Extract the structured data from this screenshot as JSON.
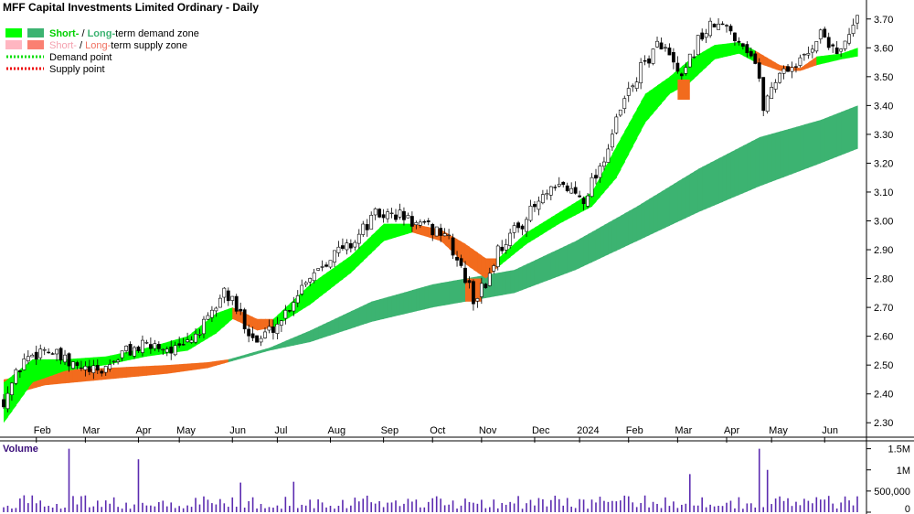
{
  "title": "MFF Capital Investments Limited Ordinary - Daily",
  "legend": [
    {
      "parts": [
        {
          "text": "Short-",
          "color": "#00e400"
        },
        {
          "text": " / ",
          "color": "#000000"
        },
        {
          "text": "Long-",
          "color": "#3cb371"
        },
        {
          "text": "term demand zone",
          "color": "#000000"
        }
      ],
      "swatch1": "#00ff00",
      "swatch2": "#3cb371"
    },
    {
      "parts": [
        {
          "text": "Short-",
          "color": "#ffb6c1"
        },
        {
          "text": " / ",
          "color": "#000000"
        },
        {
          "text": "Long-",
          "color": "#fa8072"
        },
        {
          "text": "term supply zone",
          "color": "#000000"
        }
      ],
      "swatch1": "#ffb6c1",
      "swatch2": "#fa8072"
    },
    {
      "text": "Demand point",
      "dot_color": "#00dd00"
    },
    {
      "text": "Supply point",
      "dot_color": "#ee0000"
    }
  ],
  "volume_label": "Volume",
  "colors": {
    "short_demand": "#00ff00",
    "long_demand": "#3cb371",
    "short_supply": "#ffb6c1",
    "long_supply": "#f26b1d",
    "candle": "#000000",
    "volume": "#5b2bb0"
  },
  "chart_data": {
    "type": "candlestick",
    "price_axis": {
      "min": 2.25,
      "max": 3.75,
      "ticks": [
        "2.30",
        "2.40",
        "2.50",
        "2.60",
        "2.70",
        "2.80",
        "2.90",
        "3.00",
        "3.10",
        "3.20",
        "3.30",
        "3.40",
        "3.50",
        "3.60",
        "3.70"
      ],
      "position": "right"
    },
    "volume_axis": {
      "ticks": [
        "0",
        "500,000",
        "1M",
        "1.5M"
      ],
      "tick_values": [
        0,
        500000,
        1000000,
        1500000
      ],
      "max": 1600000
    },
    "x_labels": [
      {
        "label": "Feb",
        "day": 8
      },
      {
        "label": "Mar",
        "day": 20
      },
      {
        "label": "Apr",
        "day": 33
      },
      {
        "label": "May",
        "day": 43
      },
      {
        "label": "Jun",
        "day": 56
      },
      {
        "label": "Jul",
        "day": 67
      },
      {
        "label": "Aug",
        "day": 80
      },
      {
        "label": "Sep",
        "day": 93
      },
      {
        "label": "Oct",
        "day": 105
      },
      {
        "label": "Nov",
        "day": 117
      },
      {
        "label": "Dec",
        "day": 130
      },
      {
        "label": "2024",
        "day": 141
      },
      {
        "label": "Feb",
        "day": 153
      },
      {
        "label": "Mar",
        "day": 165
      },
      {
        "label": "Apr",
        "day": 177
      },
      {
        "label": "May",
        "day": 188
      },
      {
        "label": "Jun",
        "day": 201
      }
    ],
    "days": 210,
    "price_path": [
      [
        0,
        2.38
      ],
      [
        5,
        2.52
      ],
      [
        10,
        2.56
      ],
      [
        16,
        2.5
      ],
      [
        23,
        2.47
      ],
      [
        30,
        2.55
      ],
      [
        37,
        2.57
      ],
      [
        43,
        2.55
      ],
      [
        50,
        2.65
      ],
      [
        54,
        2.76
      ],
      [
        58,
        2.67
      ],
      [
        62,
        2.58
      ],
      [
        68,
        2.66
      ],
      [
        74,
        2.8
      ],
      [
        80,
        2.88
      ],
      [
        85,
        2.92
      ],
      [
        91,
        3.02
      ],
      [
        97,
        3.02
      ],
      [
        102,
        2.98
      ],
      [
        108,
        2.96
      ],
      [
        113,
        2.8
      ],
      [
        115,
        2.73
      ],
      [
        118,
        2.78
      ],
      [
        121,
        2.9
      ],
      [
        126,
        2.98
      ],
      [
        132,
        3.08
      ],
      [
        137,
        3.12
      ],
      [
        142,
        3.08
      ],
      [
        147,
        3.22
      ],
      [
        152,
        3.42
      ],
      [
        157,
        3.55
      ],
      [
        161,
        3.62
      ],
      [
        166,
        3.48
      ],
      [
        170,
        3.63
      ],
      [
        174,
        3.68
      ],
      [
        178,
        3.66
      ],
      [
        182,
        3.6
      ],
      [
        184,
        3.55
      ],
      [
        186,
        3.4
      ],
      [
        190,
        3.52
      ],
      [
        195,
        3.55
      ],
      [
        200,
        3.65
      ],
      [
        205,
        3.58
      ],
      [
        209,
        3.7
      ]
    ],
    "short_term_zone": [
      {
        "day": 0,
        "low": 2.3,
        "high": 2.44,
        "kind": "demand"
      },
      {
        "day": 7,
        "low": 2.44,
        "high": 2.52,
        "kind": "demand"
      },
      {
        "day": 15,
        "low": 2.48,
        "high": 2.52,
        "kind": "demand"
      },
      {
        "day": 25,
        "low": 2.5,
        "high": 2.53,
        "kind": "demand"
      },
      {
        "day": 35,
        "low": 2.53,
        "high": 2.56,
        "kind": "demand"
      },
      {
        "day": 45,
        "low": 2.55,
        "high": 2.6,
        "kind": "demand"
      },
      {
        "day": 52,
        "low": 2.61,
        "high": 2.68,
        "kind": "demand"
      },
      {
        "day": 56,
        "low": 2.66,
        "high": 2.7,
        "kind": "supply"
      },
      {
        "day": 62,
        "low": 2.62,
        "high": 2.66,
        "kind": "supply"
      },
      {
        "day": 66,
        "low": 2.63,
        "high": 2.66,
        "kind": "demand"
      },
      {
        "day": 75,
        "low": 2.71,
        "high": 2.78,
        "kind": "demand"
      },
      {
        "day": 85,
        "low": 2.82,
        "high": 2.88,
        "kind": "demand"
      },
      {
        "day": 93,
        "low": 2.93,
        "high": 2.99,
        "kind": "demand"
      },
      {
        "day": 100,
        "low": 2.96,
        "high": 2.99,
        "kind": "supply"
      },
      {
        "day": 107,
        "low": 2.93,
        "high": 2.97,
        "kind": "supply"
      },
      {
        "day": 113,
        "low": 2.85,
        "high": 2.92,
        "kind": "supply"
      },
      {
        "day": 118,
        "low": 2.8,
        "high": 2.87,
        "kind": "supply"
      },
      {
        "day": 121,
        "low": 2.84,
        "high": 2.87,
        "kind": "demand"
      },
      {
        "day": 128,
        "low": 2.92,
        "high": 2.96,
        "kind": "demand"
      },
      {
        "day": 136,
        "low": 2.99,
        "high": 3.03,
        "kind": "demand"
      },
      {
        "day": 144,
        "low": 3.05,
        "high": 3.1,
        "kind": "demand"
      },
      {
        "day": 150,
        "low": 3.15,
        "high": 3.26,
        "kind": "demand"
      },
      {
        "day": 157,
        "low": 3.34,
        "high": 3.44,
        "kind": "demand"
      },
      {
        "day": 163,
        "low": 3.44,
        "high": 3.5,
        "kind": "demand"
      },
      {
        "day": 168,
        "low": 3.48,
        "high": 3.56,
        "kind": "demand"
      },
      {
        "day": 174,
        "low": 3.56,
        "high": 3.61,
        "kind": "demand"
      },
      {
        "day": 180,
        "low": 3.58,
        "high": 3.62,
        "kind": "demand"
      },
      {
        "day": 184,
        "low": 3.55,
        "high": 3.59,
        "kind": "supply"
      },
      {
        "day": 190,
        "low": 3.52,
        "high": 3.54,
        "kind": "supply"
      },
      {
        "day": 195,
        "low": 3.52,
        "high": 3.53,
        "kind": "supply"
      },
      {
        "day": 199,
        "low": 3.54,
        "high": 3.57,
        "kind": "demand"
      },
      {
        "day": 205,
        "low": 3.56,
        "high": 3.58,
        "kind": "demand"
      },
      {
        "day": 209,
        "low": 3.57,
        "high": 3.6,
        "kind": "demand"
      }
    ],
    "long_term_zone": [
      {
        "day": 0,
        "low": 2.39,
        "high": 2.45,
        "kind": "supply"
      },
      {
        "day": 10,
        "low": 2.43,
        "high": 2.48,
        "kind": "supply"
      },
      {
        "day": 25,
        "low": 2.45,
        "high": 2.49,
        "kind": "supply"
      },
      {
        "day": 40,
        "low": 2.47,
        "high": 2.5,
        "kind": "supply"
      },
      {
        "day": 50,
        "low": 2.49,
        "high": 2.51,
        "kind": "supply"
      },
      {
        "day": 55,
        "low": 2.51,
        "high": 2.52,
        "kind": "demand"
      },
      {
        "day": 65,
        "low": 2.55,
        "high": 2.56,
        "kind": "demand"
      },
      {
        "day": 75,
        "low": 2.58,
        "high": 2.62,
        "kind": "demand"
      },
      {
        "day": 90,
        "low": 2.65,
        "high": 2.72,
        "kind": "demand"
      },
      {
        "day": 105,
        "low": 2.7,
        "high": 2.78,
        "kind": "demand"
      },
      {
        "day": 113,
        "low": 2.72,
        "high": 2.8,
        "kind": "demand"
      },
      {
        "day": 125,
        "low": 2.75,
        "high": 2.83,
        "kind": "demand"
      },
      {
        "day": 140,
        "low": 2.83,
        "high": 2.93,
        "kind": "demand"
      },
      {
        "day": 155,
        "low": 2.93,
        "high": 3.05,
        "kind": "demand"
      },
      {
        "day": 170,
        "low": 3.03,
        "high": 3.18,
        "kind": "demand"
      },
      {
        "day": 185,
        "low": 3.12,
        "high": 3.29,
        "kind": "demand"
      },
      {
        "day": 200,
        "low": 3.2,
        "high": 3.35,
        "kind": "demand"
      },
      {
        "day": 209,
        "low": 3.25,
        "high": 3.4,
        "kind": "demand"
      }
    ],
    "supply_boxes": [
      {
        "day_start": 113,
        "day_end": 117,
        "low": 2.72,
        "high": 2.8
      },
      {
        "day_start": 165,
        "day_end": 168,
        "low": 3.42,
        "high": 3.49
      }
    ],
    "volume_spikes": [
      [
        16,
        1500000
      ],
      [
        33,
        1250000
      ],
      [
        58,
        700000
      ],
      [
        71,
        720000
      ],
      [
        185,
        1500000
      ],
      [
        187,
        1000000
      ],
      [
        168,
        900000
      ]
    ]
  }
}
